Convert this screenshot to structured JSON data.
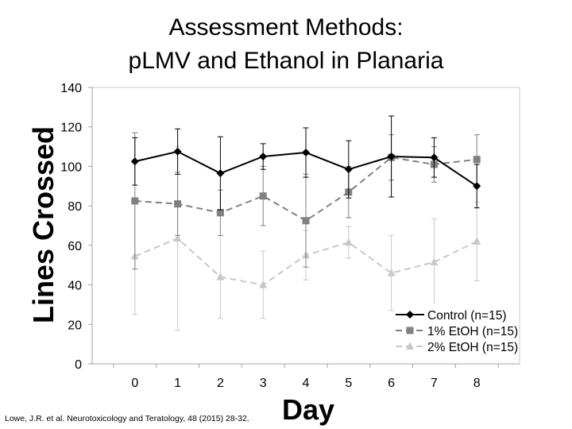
{
  "slide": {
    "title_line1": "Assessment Methods:",
    "title_line2": "pLMV and Ethanol in Planaria",
    "citation": "Lowe, J.R. et al.  Neurotoxicology and Teratology, 48 (2015) 28-32."
  },
  "chart_data": {
    "type": "line",
    "title": "Assessment Methods: pLMV and Ethanol in Planaria",
    "xlabel": "Day",
    "ylabel": "Lines Crossed",
    "x": [
      0,
      1,
      2,
      3,
      4,
      5,
      6,
      7,
      8
    ],
    "xlim": [
      -1,
      9
    ],
    "ylim": [
      0,
      140
    ],
    "yticks": [
      0,
      20,
      40,
      60,
      80,
      100,
      120,
      140
    ],
    "grid": false,
    "legend_position": "bottom-right",
    "series": [
      {
        "name": "Control (n=15)",
        "color": "#000000",
        "marker": "diamond",
        "linestyle": "solid",
        "values": [
          102.5,
          107.5,
          96.5,
          105,
          107,
          98.5,
          105,
          104.5,
          90
        ],
        "error": [
          12,
          11.5,
          18.5,
          6.5,
          12.5,
          14.5,
          20.5,
          10,
          11
        ]
      },
      {
        "name": "1% EtOH (n=15)",
        "color": "#808080",
        "marker": "square",
        "linestyle": "dashed",
        "values": [
          82.5,
          81,
          76.5,
          85,
          72.5,
          87,
          104.5,
          101,
          103.5
        ],
        "error": [
          34.5,
          16,
          11.5,
          15,
          23.5,
          13,
          11.5,
          9,
          12.5
        ]
      },
      {
        "name": "2% EtOH (n=15)",
        "color": "#c8c8c8",
        "marker": "triangle",
        "linestyle": "dashed",
        "values": [
          54.5,
          63.5,
          44,
          40,
          55,
          61.5,
          46,
          51.5,
          62
        ],
        "error": [
          29.5,
          46.5,
          21,
          17,
          12.5,
          8,
          19,
          22,
          20
        ]
      }
    ]
  }
}
